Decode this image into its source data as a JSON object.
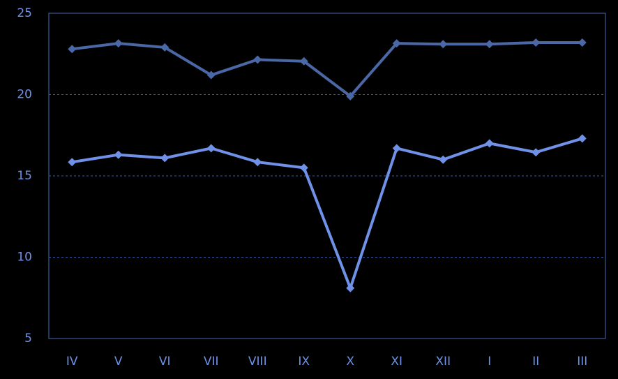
{
  "chart_data": {
    "type": "line",
    "categories": [
      "IV",
      "V",
      "VI",
      "VII",
      "VIII",
      "IX",
      "X",
      "XI",
      "XII",
      "I",
      "II",
      "III"
    ],
    "series": [
      {
        "color": "#4a68a6",
        "values": [
          22.8,
          23.15,
          22.9,
          21.2,
          22.15,
          22.05,
          19.9,
          23.15,
          23.1,
          23.1,
          23.2,
          23.2
        ]
      },
      {
        "color": "#6f92e8",
        "values": [
          15.85,
          16.3,
          16.1,
          16.7,
          15.85,
          15.5,
          8.1,
          16.7,
          16.0,
          17.0,
          16.45,
          17.3
        ]
      }
    ],
    "ylim": [
      5,
      25
    ],
    "yticks": [
      5,
      10,
      15,
      20,
      25
    ],
    "grid": true
  }
}
